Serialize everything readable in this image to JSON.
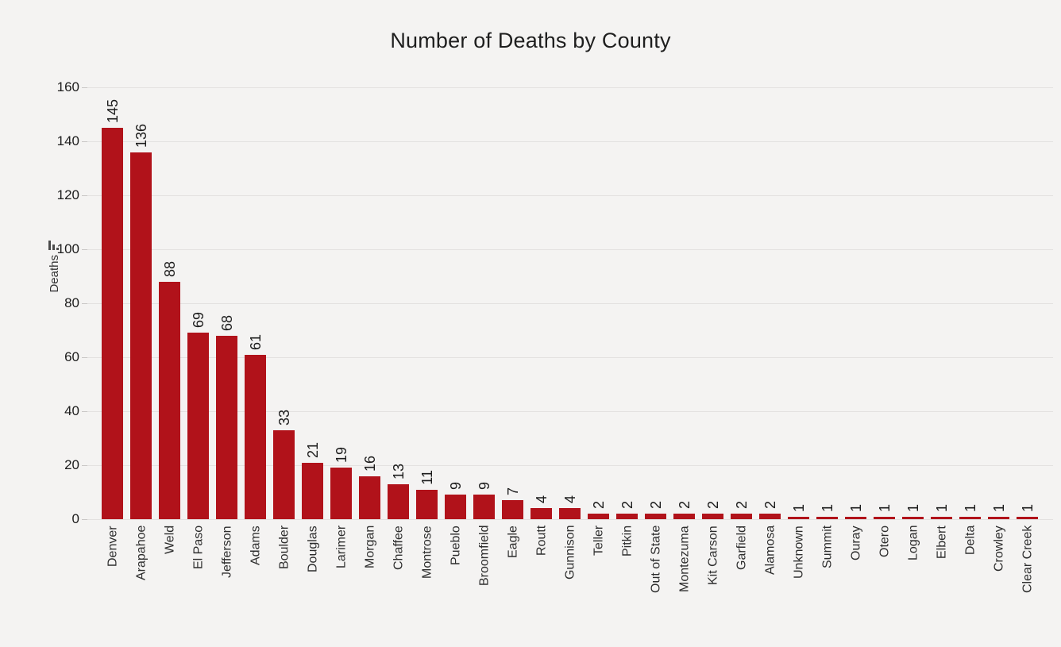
{
  "title": "Number of Deaths by County",
  "y_axis": {
    "label": "Deaths",
    "ticks": [
      0,
      20,
      40,
      60,
      80,
      100,
      120,
      140,
      160
    ]
  },
  "icons": {
    "y_axis_sort": "sort-descending-bars-icon"
  },
  "colors": {
    "background": "#f4f3f2",
    "bar": "#b1121a",
    "grid": "#e3e1e0",
    "tick_mark": "#c9c7c6",
    "title_text": "#1e1e1e",
    "axis_text": "#1c1c1c",
    "value_text": "#1c1c1c",
    "category_text": "#2d2d2d",
    "ylabel_text": "#333333",
    "icon": "#4b4b4b"
  },
  "chart_data": {
    "type": "bar",
    "title": "Number of Deaths by County",
    "xlabel": "",
    "ylabel": "Deaths",
    "categories": [
      "Denver",
      "Arapahoe",
      "Weld",
      "El Paso",
      "Jefferson",
      "Adams",
      "Boulder",
      "Douglas",
      "Larimer",
      "Morgan",
      "Chaffee",
      "Montrose",
      "Pueblo",
      "Broomfield",
      "Eagle",
      "Routt",
      "Gunnison",
      "Teller",
      "Pitkin",
      "Out of State",
      "Montezuma",
      "Kit Carson",
      "Garfield",
      "Alamosa",
      "Unknown",
      "Summit",
      "Ouray",
      "Otero",
      "Logan",
      "Elbert",
      "Delta",
      "Crowley",
      "Clear Creek"
    ],
    "values": [
      145,
      136,
      88,
      69,
      68,
      61,
      33,
      21,
      19,
      16,
      13,
      11,
      9,
      9,
      7,
      4,
      4,
      2,
      2,
      2,
      2,
      2,
      2,
      2,
      1,
      1,
      1,
      1,
      1,
      1,
      1,
      1,
      1
    ],
    "ylim": [
      0,
      160
    ],
    "yticks": [
      0,
      20,
      40,
      60,
      80,
      100,
      120,
      140,
      160
    ],
    "grid": true,
    "legend": false,
    "bar_color": "#b1121a",
    "value_labels": "rotated-90-above-bars",
    "category_labels": "rotated-90-below-axis"
  }
}
